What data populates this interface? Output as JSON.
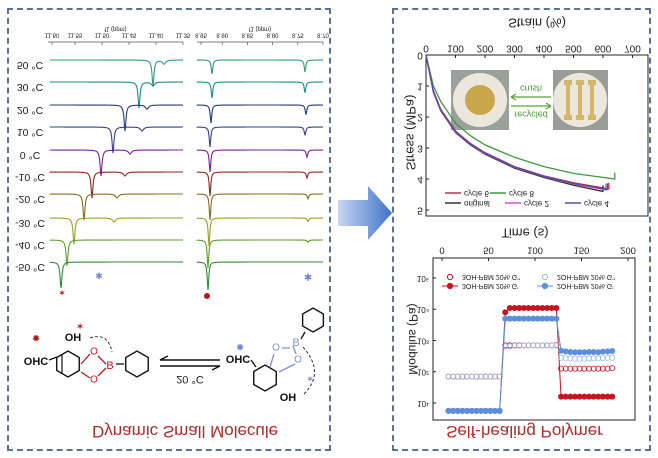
{
  "colors": {
    "panel_border": "#5a7390",
    "title": "#b22a2a",
    "arrow": "#4f7fd0",
    "red": "#c8141e",
    "blue": "#5b8fdb",
    "boron_red": "#c8141e",
    "boron_blue": "#7f8fe0"
  },
  "left_panel": {
    "title": "Dynamic Small Molecule",
    "nmr": {
      "axis_label": "f1 (ppm)",
      "left_ticks": [
        "11.60",
        "11.55",
        "11.50",
        "11.45",
        "11.40",
        "11.35"
      ],
      "right_ticks": [
        "8.95",
        "8.90",
        "8.85",
        "8.80",
        "8.75",
        "8.70"
      ],
      "temperatures": [
        "50 °C",
        "30 °C",
        "20 °C",
        "10 °C",
        "0 °C",
        "-10 °C",
        "-20 °C",
        "-30 °C",
        "-40 °C",
        "-50 °C"
      ],
      "trace_colors": [
        "#2f9a83",
        "#1f8a8a",
        "#243a7a",
        "#3a3f8c",
        "#7a1f9a",
        "#8a2a1f",
        "#8a6a1f",
        "#9aa01f",
        "#5aa02a",
        "#2f8a3a"
      ],
      "markers": {
        "red_star": "star-icon",
        "blue_star": "asterisk-icon",
        "red_dot": "dot-icon",
        "blue_dot": "asterisk-icon"
      }
    },
    "reaction": {
      "left_molecule": {
        "aldehyde": "OHC",
        "hydroxyl": "OH",
        "oxygens": [
          "O",
          "O"
        ],
        "boron": "B"
      },
      "right_molecule": {
        "aldehyde": "OHC",
        "hydroxyl": "OH",
        "oxygens": [
          "O",
          "O"
        ],
        "boron": "B"
      },
      "condition": "20 °C",
      "arrow": "equilibrium-arrow-icon"
    }
  },
  "transition_arrow": "right-arrow-icon",
  "right_panel": {
    "title": "Self-healing Polymer",
    "inset": {
      "crush_label": "crush",
      "recycled_label": "recycled"
    }
  },
  "chart_data": [
    {
      "type": "line",
      "xlabel": "Strain (%)",
      "ylabel": "Stress (MPa)",
      "xlim": [
        0,
        700
      ],
      "ylim": [
        0,
        5
      ],
      "xticks": [
        "0",
        "100",
        "200",
        "300",
        "400",
        "500",
        "600",
        "700"
      ],
      "yticks": [
        "0",
        "1",
        "2",
        "3",
        "4",
        "5"
      ],
      "legend_placement": "bottom",
      "x": [
        0,
        25,
        50,
        100,
        150,
        200,
        300,
        400,
        500,
        600
      ],
      "series": [
        {
          "name": "cycle 6",
          "color": "#b2333f",
          "end_strain": 620,
          "values": [
            0,
            1.15,
            1.75,
            2.45,
            2.85,
            3.15,
            3.6,
            3.9,
            4.12,
            4.32
          ]
        },
        {
          "name": "cycle 8",
          "color": "#3e9a3e",
          "end_strain": 640,
          "values": [
            0,
            1.0,
            1.5,
            2.2,
            2.6,
            2.9,
            3.3,
            3.6,
            3.82,
            4.0
          ]
        },
        {
          "name": "original",
          "color": "#333333",
          "end_strain": 600,
          "values": [
            0,
            1.2,
            1.8,
            2.5,
            2.9,
            3.2,
            3.65,
            3.95,
            4.2,
            4.4
          ]
        },
        {
          "name": "cycle 2",
          "color": "#d94fd9",
          "end_strain": 610,
          "values": [
            0,
            1.18,
            1.78,
            2.48,
            2.88,
            3.18,
            3.62,
            3.92,
            4.16,
            4.35
          ]
        },
        {
          "name": "cycle 4",
          "color": "#5a4aa8",
          "end_strain": 615,
          "values": [
            0,
            1.17,
            1.77,
            2.47,
            2.87,
            3.17,
            3.61,
            3.91,
            4.15,
            4.34
          ]
        }
      ]
    },
    {
      "type": "scatter",
      "xlabel": "Time (s)",
      "ylabel": "Modulus (Pa)",
      "xlim": [
        0,
        200
      ],
      "ylim": [
        1,
        100000
      ],
      "yscale": "log",
      "xticks": [
        "0",
        "50",
        "100",
        "150",
        "200"
      ],
      "yticks": [
        "10¹",
        "10²",
        "10³",
        "10⁴",
        "10⁵"
      ],
      "legend_placement": "top",
      "x": [
        7,
        12,
        17,
        22,
        27,
        32,
        37,
        42,
        47,
        52,
        57,
        62,
        68,
        73,
        78,
        83,
        88,
        93,
        98,
        103,
        108,
        113,
        118,
        123,
        128,
        133,
        138,
        143,
        148,
        153,
        158,
        163,
        168,
        173,
        178,
        183
      ],
      "series": [
        {
          "name": "3OH-PBM 20% G''",
          "color": "#c8141e",
          "filled": false,
          "values": [
            70,
            70,
            70,
            70,
            70,
            70,
            70,
            70,
            70,
            70,
            70,
            70,
            700,
            700,
            700,
            700,
            700,
            700,
            700,
            700,
            700,
            700,
            700,
            720,
            126,
            126,
            126,
            126,
            126,
            126,
            126,
            126,
            126,
            126,
            126,
            130
          ]
        },
        {
          "name": "3OH-PBM 20% G'",
          "color": "#c8141e",
          "filled": true,
          "values": [
            5.6,
            5.6,
            5.6,
            5.6,
            5.6,
            5.6,
            5.6,
            5.6,
            5.6,
            5.6,
            5.6,
            5.6,
            8000,
            11000,
            11000,
            11000,
            11000,
            11000,
            11000,
            11000,
            11000,
            11000,
            11000,
            11000,
            16,
            16,
            16,
            16,
            16,
            16,
            16,
            16,
            16,
            16,
            16,
            16
          ]
        },
        {
          "name": "2OH-PBM 20% G''",
          "color": "#9fb8e8",
          "filled": false,
          "values": [
            70,
            70,
            70,
            70,
            70,
            70,
            70,
            70,
            70,
            70,
            70,
            70,
            650,
            650,
            680,
            680,
            700,
            700,
            700,
            700,
            700,
            700,
            700,
            700,
            280,
            270,
            270,
            260,
            260,
            260,
            270,
            270,
            270,
            270,
            280,
            280
          ]
        },
        {
          "name": "2OH-PBM 20% G'",
          "color": "#5b8fdb",
          "filled": true,
          "values": [
            5.6,
            5.6,
            5.6,
            5.6,
            5.6,
            5.6,
            5.6,
            5.6,
            5.6,
            5.6,
            5.6,
            5.6,
            5000,
            5000,
            5000,
            5000,
            5000,
            5000,
            5000,
            5000,
            5000,
            5000,
            5000,
            5000,
            470,
            450,
            430,
            420,
            420,
            420,
            430,
            430,
            420,
            440,
            450,
            460
          ]
        }
      ]
    }
  ]
}
